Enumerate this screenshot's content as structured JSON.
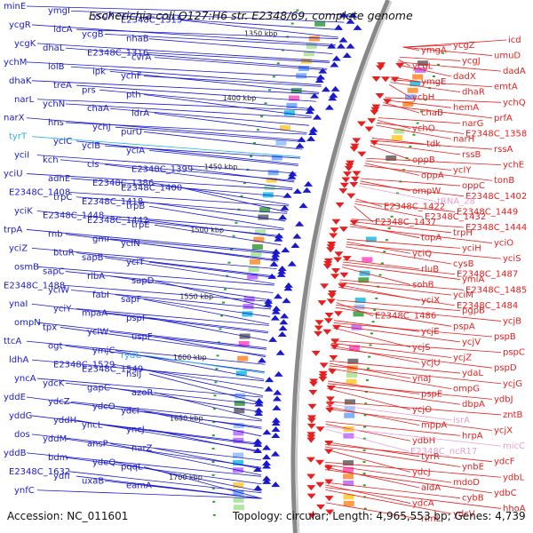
{
  "title": "Escherichia coli O127:H6 str. E2348/69, complete genome",
  "accession": "Accession: NC_011601",
  "topology": "Topology: circular; Length: 4,965,553 bp; Genes: 4,739",
  "colors": {
    "forward": "#1a1acc",
    "reverse": "#e62020",
    "rna": "#e8a0d0",
    "misc_cyan": "#28b4e6",
    "backbone": "#888888",
    "ticks": "#22aa22"
  },
  "kbp_ticks": [
    "1350 kbp",
    "1400 kbp",
    "1450 kbp",
    "1500 kbp",
    "1550 kbp",
    "1600 kbp",
    "1650 kbp",
    "1700 kbp"
  ],
  "left_labels": [
    "minE",
    "ymgI",
    "ycgX",
    "E2348C_1315",
    "ycgR",
    "ldcA",
    "ycgB",
    "nhaB",
    "ycgK",
    "dhaL",
    "E2348C_1316",
    "cvrA",
    "ychM",
    "lolB",
    "ipk",
    "ychF",
    "dhaK",
    "treA",
    "prs",
    "pth",
    "narL",
    "ychN",
    "chaA",
    "ldrA",
    "narX",
    "hns",
    "ychJ",
    "purU",
    "tyrT",
    "yciC",
    "yciB",
    "yciA",
    "yciI",
    "kch",
    "cls",
    "E2348C_1399",
    "yciU",
    "adhE",
    "E2348C_1386",
    "E2348C_1400",
    "E2348C_1408",
    "trpC",
    "E2348C_1418",
    "trpB",
    "yciK",
    "E2348C_1448",
    "E2348C_1442",
    "trpE",
    "trpA",
    "rnb",
    "gmr",
    "yciN",
    "yciZ",
    "btuR",
    "sapB",
    "yciT",
    "osmB",
    "sapC",
    "ribA",
    "sapD",
    "E2348C_1488",
    "yciW",
    "fabI",
    "sapF",
    "ynaI",
    "yciY",
    "mpaA",
    "pspF",
    "ompN",
    "tpx",
    "yciW",
    "uspF",
    "ttcA",
    "ogt",
    "ymjC",
    "rydC",
    "ldhA",
    "E2348C_1529",
    "E2348C_1549",
    "hslJ",
    "yncA",
    "ydcK",
    "gapC",
    "azoR",
    "yddE",
    "ydcZ",
    "ydcO",
    "ydcI",
    "yddG",
    "yddH",
    "yncL",
    "yncJ",
    "dos",
    "yddM",
    "ansP",
    "narZ",
    "yddB",
    "bdm",
    "ydeQ",
    "pqqL",
    "E2348C_1632",
    "ydfI",
    "uxaB",
    "eamA",
    "ynfC"
  ],
  "right_labels": [
    "icd",
    "ycgZ",
    "ymgA",
    "umuD",
    "ycgJ",
    "ycgL",
    "dadA",
    "dadX",
    "ymgE",
    "emtA",
    "dhaR",
    "ycbH",
    "ychQ",
    "hemA",
    "chaB",
    "prfA",
    "narG",
    "ychO",
    "E2348C_1358",
    "narH",
    "tdk",
    "rssA",
    "rssB",
    "oppB",
    "ychE",
    "ycIY",
    "oppA",
    "tonB",
    "oppC",
    "ompW",
    "E2348C_1402",
    "tRNA_28",
    "E2348C_1422",
    "E2348C_1449",
    "E2348C_1432",
    "E2348C_1437",
    "E2348C_1444",
    "trpH",
    "topA",
    "yciO",
    "yciH",
    "yciQ",
    "yciS",
    "cysB",
    "rluB",
    "E2348C_1487",
    "ymiA",
    "sohB",
    "E2348C_1485",
    "yciM",
    "yciX",
    "E2348C_1484",
    "pgpB",
    "E2348C_1486",
    "ycjB",
    "pspA",
    "ycjE",
    "pspB",
    "ycjV",
    "ycjS",
    "pspC",
    "ycjZ",
    "ycjU",
    "pspD",
    "ydaL",
    "ynaJ",
    "ycjG",
    "ompG",
    "pspE",
    "ydbJ",
    "dbpA",
    "ycjO",
    "zntB",
    "isrA",
    "mppA",
    "ycjX",
    "hrpA",
    "ydbH",
    "micC",
    "E2348C_ncR17",
    "tyrR",
    "ydcF",
    "ynbE",
    "ydcJ",
    "ydbL",
    "mdoD",
    "aldA",
    "ydbC",
    "cybB",
    "ydcA",
    "hhoA",
    "ydcV",
    "rimL"
  ]
}
